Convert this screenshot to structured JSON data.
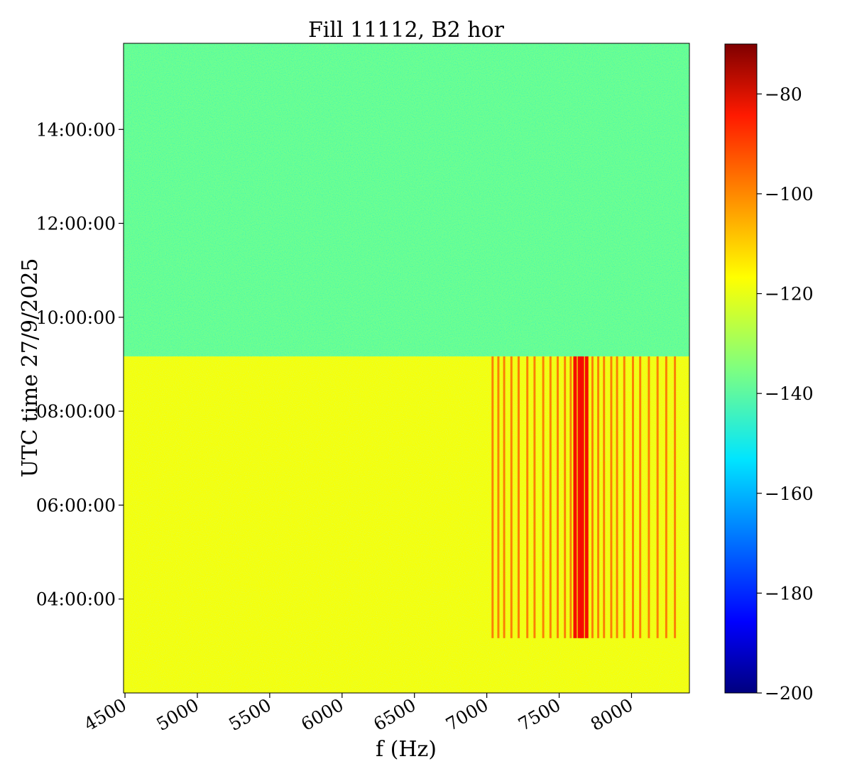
{
  "chart_data": {
    "type": "heatmap",
    "title": "Fill 11112, B2 hor",
    "xlabel": "f (Hz)",
    "ylabel": "UTC time 27/9/2025",
    "x_range": [
      4490,
      8400
    ],
    "x_ticks": [
      4500,
      5000,
      5500,
      6000,
      6500,
      7000,
      7500,
      8000
    ],
    "x_tick_labels": [
      "4500",
      "5000",
      "5500",
      "6000",
      "6500",
      "7000",
      "7500",
      "8000"
    ],
    "y_range": [
      "02:00:00",
      "15:50:00"
    ],
    "y_ticks": [
      "04:00:00",
      "06:00:00",
      "08:00:00",
      "10:00:00",
      "12:00:00",
      "14:00:00"
    ],
    "y_tick_labels": [
      "04:00:00",
      "06:00:00",
      "08:00:00",
      "10:00:00",
      "12:00:00",
      "14:00:00"
    ],
    "colormap": "jet",
    "colorbar": {
      "range": [
        -200,
        -70
      ],
      "ticks": [
        -80,
        -100,
        -120,
        -140,
        -160,
        -180,
        -200
      ],
      "tick_labels": [
        "−80",
        "−100",
        "−120",
        "−140",
        "−160",
        "−180",
        "−200"
      ]
    },
    "regions": [
      {
        "time_start": "09:10:00",
        "time_end": "15:50:00",
        "level": -137
      },
      {
        "time_start": "02:00:00",
        "time_end": "09:10:00",
        "level": -120
      }
    ],
    "spectral_lines": {
      "time_start": "03:10:00",
      "time_end": "09:10:00",
      "freqs": [
        7040,
        7080,
        7120,
        7170,
        7220,
        7280,
        7330,
        7390,
        7440,
        7490,
        7540,
        7580,
        7610,
        7640,
        7660,
        7690,
        7730,
        7770,
        7810,
        7860,
        7900,
        7950,
        8010,
        8060,
        8120,
        8180,
        8240,
        8300
      ],
      "peak_level": -85
    }
  }
}
